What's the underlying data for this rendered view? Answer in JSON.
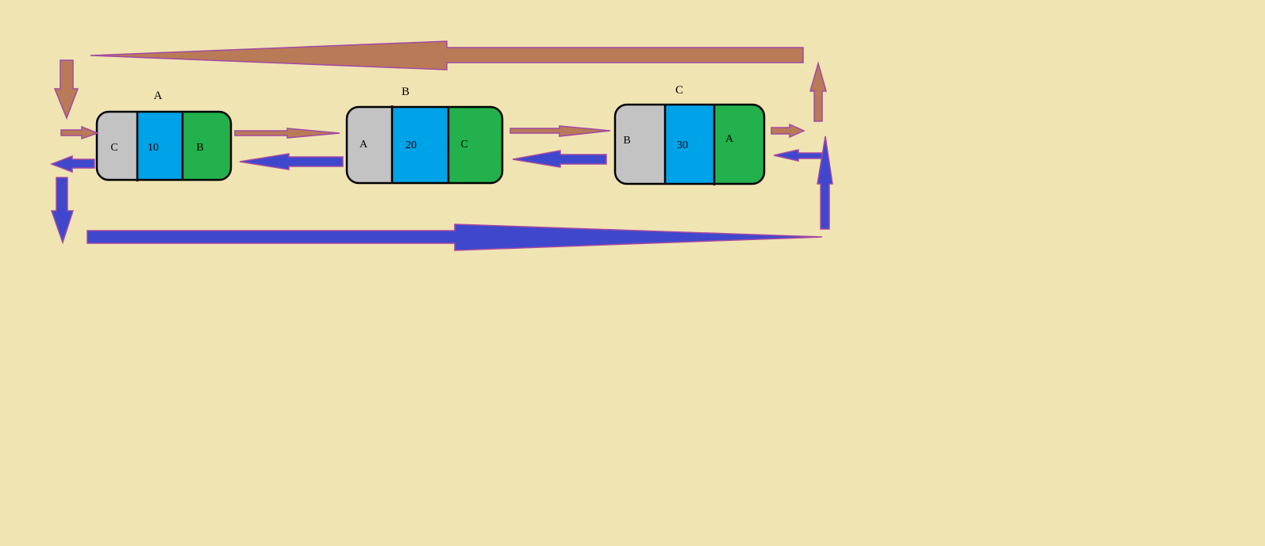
{
  "diagram": {
    "type": "circular doubly linked list",
    "colors": {
      "background": "#f0e4b2",
      "prev_cell": "#c3c3c3",
      "data_cell": "#00a2e8",
      "next_cell": "#22b14c",
      "forward_arrow": "#b97a57",
      "backward_arrow": "#3f48cc",
      "arrow_outline": "#a349a4"
    },
    "nodes": [
      {
        "name": "A",
        "prev": "C",
        "data": "10",
        "next": "B"
      },
      {
        "name": "B",
        "prev": "A",
        "data": "20",
        "next": "C"
      },
      {
        "name": "C",
        "prev": "B",
        "data": "30",
        "next": "A"
      }
    ]
  }
}
